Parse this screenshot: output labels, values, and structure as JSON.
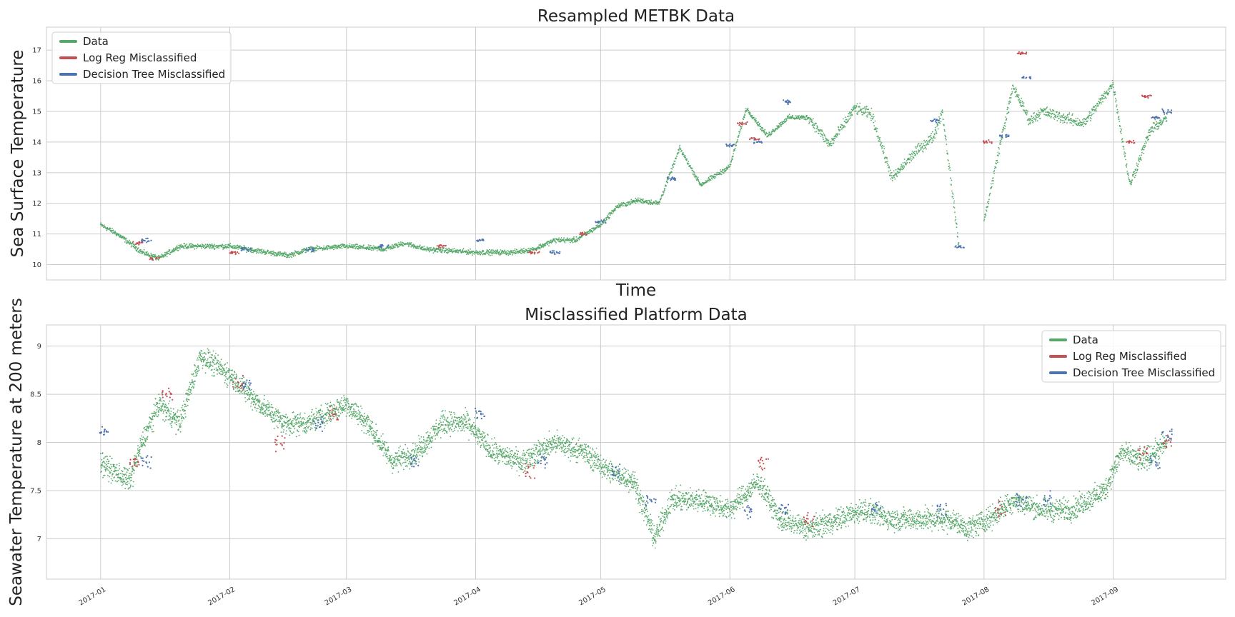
{
  "chart_data": [
    {
      "type": "scatter",
      "title": "Resampled METBK Data",
      "xlabel": "Time",
      "ylabel": "Sea Surface Temperature",
      "ylim": [
        9.5,
        17.75
      ],
      "yticks": [
        10,
        11,
        12,
        13,
        14,
        15,
        16,
        17
      ],
      "xlim": [
        "2016-12-19",
        "2017-09-28"
      ],
      "xtick_labels": [],
      "grid": true,
      "legend": "top-left",
      "series": [
        {
          "name": "Data",
          "color": "#55a868",
          "x": [
            "2017-01-01",
            "2017-01-05",
            "2017-01-08",
            "2017-01-11",
            "2017-01-15",
            "2017-01-20",
            "2017-02-01",
            "2017-02-10",
            "2017-02-15",
            "2017-02-20",
            "2017-03-01",
            "2017-03-10",
            "2017-03-15",
            "2017-03-20",
            "2017-04-01",
            "2017-04-10",
            "2017-04-15",
            "2017-04-20",
            "2017-04-25",
            "2017-05-01",
            "2017-05-05",
            "2017-05-10",
            "2017-05-15",
            "2017-05-20",
            "2017-05-25",
            "2017-06-01",
            "2017-06-05",
            "2017-06-10",
            "2017-06-15",
            "2017-06-20",
            "2017-06-25",
            "2017-07-01",
            "2017-07-05",
            "2017-07-10",
            "2017-07-15",
            "2017-07-20",
            "2017-07-22",
            "2017-07-26",
            "2017-08-01",
            "2017-08-05",
            "2017-08-08",
            "2017-08-12",
            "2017-08-15",
            "2017-08-20",
            "2017-08-25",
            "2017-09-01",
            "2017-09-05",
            "2017-09-10",
            "2017-09-14"
          ],
          "y": [
            11.3,
            11.0,
            10.7,
            10.4,
            10.2,
            10.6,
            10.6,
            10.4,
            10.3,
            10.5,
            10.6,
            10.5,
            10.7,
            10.5,
            10.4,
            10.4,
            10.5,
            10.8,
            10.8,
            11.3,
            11.9,
            12.1,
            12.0,
            13.8,
            12.6,
            13.2,
            15.1,
            14.2,
            14.8,
            14.8,
            13.9,
            15.1,
            14.9,
            12.8,
            13.6,
            14.2,
            15.0,
            10.6,
            11.4,
            14.0,
            15.8,
            14.7,
            15.0,
            14.8,
            14.6,
            15.9,
            12.6,
            14.4,
            14.8
          ]
        },
        {
          "name": "Log Reg Misclassified",
          "color": "#c44e52",
          "x": [
            "2017-01-10",
            "2017-01-14",
            "2017-02-02",
            "2017-03-24",
            "2017-04-15",
            "2017-04-27",
            "2017-06-04",
            "2017-06-07",
            "2017-08-02",
            "2017-08-10",
            "2017-09-05",
            "2017-09-09"
          ],
          "y": [
            10.7,
            10.2,
            10.4,
            10.6,
            10.4,
            11.0,
            14.6,
            14.1,
            14.0,
            16.9,
            14.0,
            15.5
          ]
        },
        {
          "name": "Decision Tree Misclassified",
          "color": "#4c72b0",
          "x": [
            "2017-01-12",
            "2017-02-05",
            "2017-02-20",
            "2017-03-10",
            "2017-04-02",
            "2017-04-20",
            "2017-05-01",
            "2017-05-18",
            "2017-06-01",
            "2017-06-08",
            "2017-06-15",
            "2017-07-20",
            "2017-07-26",
            "2017-08-06",
            "2017-08-11",
            "2017-09-11",
            "2017-09-14"
          ],
          "y": [
            10.8,
            10.5,
            10.5,
            10.6,
            10.8,
            10.4,
            11.4,
            12.8,
            13.9,
            14.0,
            15.3,
            14.7,
            10.6,
            14.2,
            16.1,
            14.8,
            15.0
          ]
        }
      ]
    },
    {
      "type": "scatter",
      "title": "Misclassified Platform Data",
      "xlabel": "",
      "ylabel": "Seawater Temperature at 200 meters",
      "ylim": [
        6.58,
        9.22
      ],
      "yticks": [
        7.0,
        7.5,
        8.0,
        8.5,
        9.0
      ],
      "xlim": [
        "2016-12-19",
        "2017-09-28"
      ],
      "xtick_labels": [
        "2017-01",
        "2017-02",
        "2017-03",
        "2017-04",
        "2017-05",
        "2017-06",
        "2017-07",
        "2017-08",
        "2017-09"
      ],
      "grid": true,
      "legend": "top-right",
      "series": [
        {
          "name": "Data",
          "color": "#55a868",
          "x": [
            "2017-01-01",
            "2017-01-04",
            "2017-01-08",
            "2017-01-11",
            "2017-01-15",
            "2017-01-20",
            "2017-01-25",
            "2017-02-01",
            "2017-02-08",
            "2017-02-14",
            "2017-02-20",
            "2017-03-01",
            "2017-03-06",
            "2017-03-12",
            "2017-03-18",
            "2017-03-24",
            "2017-03-30",
            "2017-04-05",
            "2017-04-12",
            "2017-04-20",
            "2017-04-27",
            "2017-05-03",
            "2017-05-09",
            "2017-05-14",
            "2017-05-18",
            "2017-05-25",
            "2017-06-01",
            "2017-06-08",
            "2017-06-13",
            "2017-06-20",
            "2017-06-27",
            "2017-07-03",
            "2017-07-10",
            "2017-07-17",
            "2017-07-24",
            "2017-07-28",
            "2017-08-02",
            "2017-08-08",
            "2017-08-15",
            "2017-08-22",
            "2017-08-30",
            "2017-09-03",
            "2017-09-08",
            "2017-09-14"
          ],
          "y": [
            7.8,
            7.7,
            7.6,
            8.0,
            8.4,
            8.2,
            8.9,
            8.7,
            8.4,
            8.2,
            8.2,
            8.4,
            8.2,
            7.8,
            7.9,
            8.2,
            8.2,
            7.9,
            7.8,
            8.0,
            7.9,
            7.7,
            7.6,
            7.0,
            7.4,
            7.4,
            7.3,
            7.6,
            7.2,
            7.1,
            7.2,
            7.3,
            7.2,
            7.2,
            7.2,
            7.1,
            7.2,
            7.4,
            7.3,
            7.3,
            7.5,
            7.9,
            7.8,
            8.0
          ]
        },
        {
          "name": "Log Reg Misclassified",
          "color": "#c44e52",
          "x": [
            "2017-01-09",
            "2017-01-17",
            "2017-02-03",
            "2017-02-13",
            "2017-02-26",
            "2017-04-14",
            "2017-06-09",
            "2017-06-20",
            "2017-08-05",
            "2017-09-08",
            "2017-09-14"
          ],
          "y": [
            7.8,
            8.5,
            8.6,
            8.0,
            8.3,
            7.7,
            7.8,
            7.2,
            7.3,
            7.9,
            8.0
          ]
        },
        {
          "name": "Decision Tree Misclassified",
          "color": "#4c72b0",
          "x": [
            "2017-01-02",
            "2017-01-12",
            "2017-02-05",
            "2017-02-22",
            "2017-03-17",
            "2017-04-02",
            "2017-04-17",
            "2017-05-05",
            "2017-05-13",
            "2017-06-05",
            "2017-06-14",
            "2017-07-06",
            "2017-07-22",
            "2017-08-10",
            "2017-08-16",
            "2017-09-11",
            "2017-09-14"
          ],
          "y": [
            8.1,
            7.8,
            8.6,
            8.2,
            7.8,
            8.3,
            7.8,
            7.7,
            7.4,
            7.3,
            7.3,
            7.3,
            7.3,
            7.4,
            7.4,
            7.8,
            8.1
          ]
        }
      ]
    }
  ]
}
